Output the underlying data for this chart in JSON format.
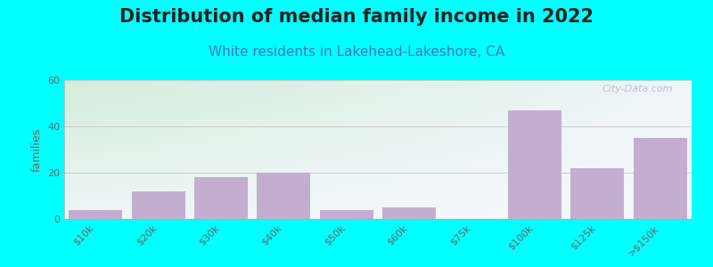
{
  "title": "Distribution of median family income in 2022",
  "subtitle": "White residents in Lakehead-Lakeshore, CA",
  "ylabel": "families",
  "background_color": "#00FFFF",
  "plot_bg_left_top": "#d4edda",
  "plot_bg_right_bottom": "#f8f8ff",
  "bar_color": "#c4aed0",
  "categories": [
    "$10k",
    "$20k",
    "$30k",
    "$40k",
    "$50k",
    "$60k",
    "$75k",
    "$100k",
    "$125k",
    ">$150k"
  ],
  "values": [
    4,
    12,
    18,
    20,
    4,
    5,
    0,
    47,
    22,
    35
  ],
  "ylim": [
    0,
    60
  ],
  "yticks": [
    0,
    20,
    40,
    60
  ],
  "title_fontsize": 15,
  "title_color": "#222222",
  "subtitle_fontsize": 11,
  "subtitle_color": "#3a7abf",
  "ylabel_fontsize": 9,
  "tick_fontsize": 8,
  "tick_color": "#666666",
  "watermark": "City-Data.com",
  "grid_color": "#cccccc"
}
